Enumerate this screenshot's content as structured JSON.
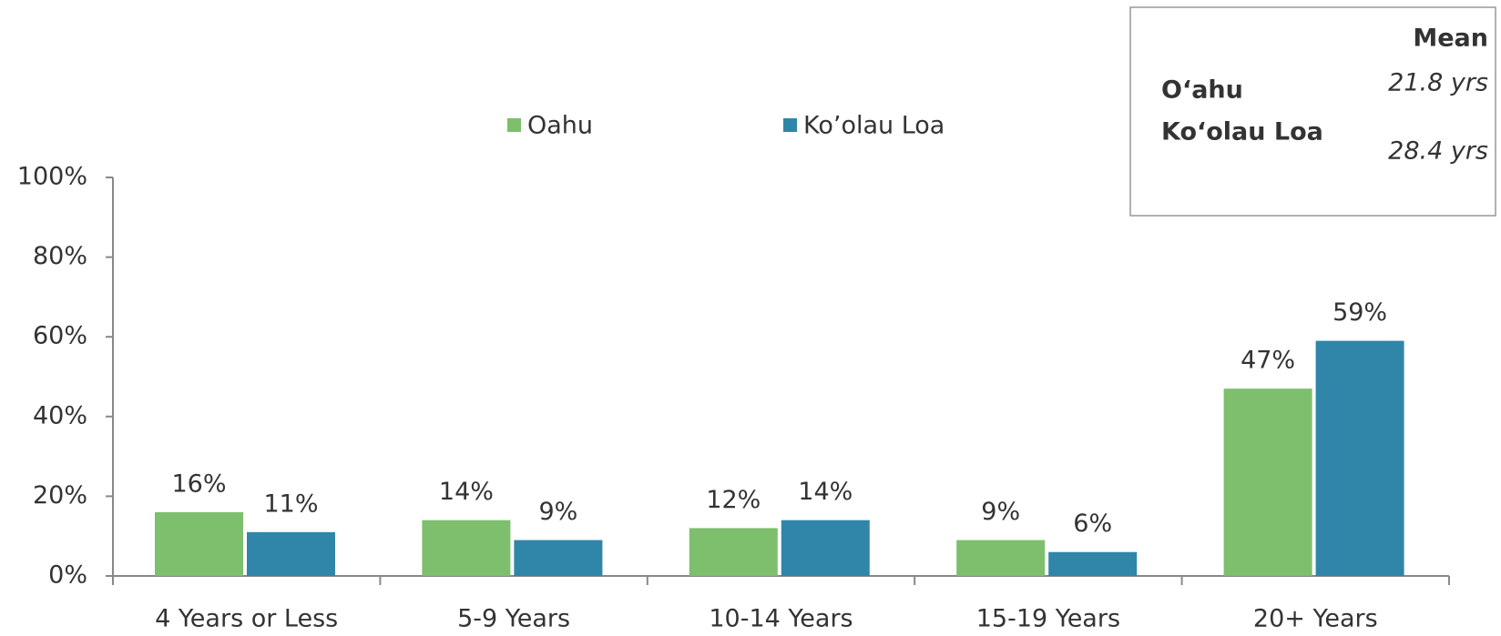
{
  "chart_data": {
    "type": "bar",
    "categories": [
      "4 Years or Less",
      "5-9 Years",
      "10-14 Years",
      "15-19 Years",
      "20+ Years"
    ],
    "series": [
      {
        "name": "Oahu",
        "color": "#7dbf6c",
        "values": [
          16,
          14,
          12,
          9,
          47
        ],
        "value_labels": [
          "16%",
          "14%",
          "12%",
          "9%",
          "47%"
        ]
      },
      {
        "name": "Ko’olau Loa",
        "color": "#2f86a9",
        "values": [
          11,
          9,
          14,
          6,
          59
        ],
        "value_labels": [
          "11%",
          "9%",
          "14%",
          "6%",
          "59%"
        ]
      }
    ],
    "ylim": [
      0,
      100
    ],
    "yticks": [
      {
        "value": 0,
        "label": "0%"
      },
      {
        "value": 20,
        "label": "20%"
      },
      {
        "value": 40,
        "label": "40%"
      },
      {
        "value": 60,
        "label": "60%"
      },
      {
        "value": 80,
        "label": "80%"
      },
      {
        "value": 100,
        "label": "100%"
      }
    ],
    "legend": "top"
  },
  "mean_table": {
    "header": "Mean",
    "rows": [
      [
        "O‘ahu",
        "21.8 yrs"
      ],
      [
        "Ko‘olau Loa",
        "28.4 yrs"
      ]
    ]
  }
}
